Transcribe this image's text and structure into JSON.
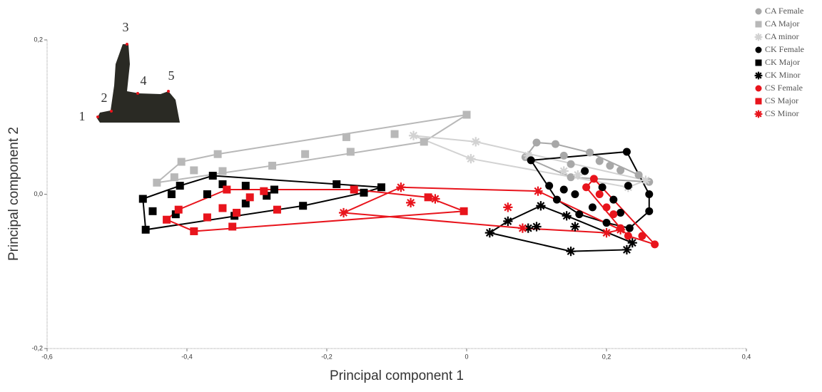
{
  "chart_data": {
    "type": "scatter",
    "xlabel": "Principal component 1",
    "ylabel": "Principal component 2",
    "xlim": [
      -0.6,
      0.4
    ],
    "ylim": [
      -0.2,
      0.2
    ],
    "xticks": [
      {
        "value": -0.6,
        "label": "-0,6"
      },
      {
        "value": -0.4,
        "label": "-0,4"
      },
      {
        "value": -0.2,
        "label": "-0,2"
      },
      0,
      {
        "value": 0.2,
        "label": "0,2"
      },
      {
        "value": 0.4,
        "label": "0,4"
      }
    ],
    "yticks": [
      {
        "value": -0.2,
        "label": "-0,2"
      },
      {
        "value": 0,
        "label": "0,0"
      },
      {
        "value": 0.2,
        "label": "0,2"
      }
    ],
    "legend": "upper right",
    "hulls": true,
    "series": [
      {
        "name": "CA Female",
        "color": "#a8a8a8",
        "marker": "circle",
        "x": [
          0.084,
          0.1,
          0.127,
          0.139,
          0.149,
          0.176,
          0.19,
          0.205,
          0.22,
          0.246,
          0.261,
          0.149,
          0.169
        ],
        "values": [
          0.048,
          0.067,
          0.065,
          0.05,
          0.039,
          0.054,
          0.043,
          0.037,
          0.031,
          0.025,
          0.016,
          0.022,
          0.03
        ]
      },
      {
        "name": "CA Major",
        "color": "#b8b8b8",
        "marker": "square",
        "x": [
          -0.443,
          -0.408,
          -0.418,
          -0.39,
          -0.356,
          -0.349,
          -0.278,
          -0.231,
          -0.172,
          -0.166,
          -0.103,
          -0.061,
          0.0
        ],
        "values": [
          0.015,
          0.042,
          0.022,
          0.031,
          0.052,
          0.03,
          0.037,
          0.052,
          0.074,
          0.055,
          0.078,
          0.068,
          0.103
        ]
      },
      {
        "name": "CA minor",
        "color": "#d2d2d2",
        "marker": "star",
        "x": [
          -0.076,
          0.013,
          0.006,
          0.088,
          0.139,
          0.159,
          0.231,
          0.256
        ],
        "values": [
          0.076,
          0.068,
          0.046,
          0.05,
          0.03,
          0.025,
          0.009,
          0.018
        ]
      },
      {
        "name": "CK Female",
        "color": "#000000",
        "marker": "circle",
        "x": [
          0.092,
          0.229,
          0.261,
          0.261,
          0.233,
          0.2,
          0.118,
          0.139,
          0.129,
          0.155,
          0.169,
          0.18,
          0.21,
          0.22,
          0.194,
          0.161,
          0.231
        ],
        "values": [
          0.044,
          0.055,
          0.0,
          -0.022,
          -0.044,
          -0.037,
          0.011,
          0.006,
          -0.007,
          0.0,
          0.03,
          -0.017,
          -0.007,
          -0.024,
          0.009,
          -0.026,
          0.011
        ]
      },
      {
        "name": "CK Major",
        "color": "#000000",
        "marker": "square",
        "x": [
          -0.463,
          -0.459,
          -0.363,
          -0.122,
          -0.234,
          -0.422,
          -0.41,
          -0.371,
          -0.349,
          -0.316,
          -0.286,
          -0.275,
          -0.186,
          -0.147,
          -0.449,
          -0.416,
          -0.332,
          -0.316
        ],
        "values": [
          -0.006,
          -0.046,
          0.024,
          0.009,
          -0.015,
          0.0,
          0.011,
          0.0,
          0.013,
          0.011,
          -0.002,
          0.006,
          0.013,
          0.002,
          -0.022,
          -0.026,
          -0.028,
          -0.012
        ]
      },
      {
        "name": "CK Minor",
        "color": "#000000",
        "marker": "star",
        "x": [
          0.033,
          0.059,
          0.1,
          0.106,
          0.149,
          0.229,
          0.237,
          0.155,
          0.143,
          0.088
        ],
        "values": [
          -0.05,
          -0.035,
          -0.042,
          -0.015,
          -0.074,
          -0.072,
          -0.063,
          -0.042,
          -0.028,
          -0.044
        ]
      },
      {
        "name": "CS Female",
        "color": "#e8141c",
        "marker": "circle",
        "x": [
          0.182,
          0.269,
          0.22,
          0.2,
          0.19,
          0.21,
          0.251,
          0.171,
          0.231
        ],
        "values": [
          0.02,
          -0.065,
          -0.044,
          -0.017,
          0.0,
          -0.026,
          -0.054,
          0.009,
          -0.054
        ]
      },
      {
        "name": "CS Major",
        "color": "#e8141c",
        "marker": "square",
        "x": [
          -0.429,
          -0.39,
          -0.343,
          -0.335,
          -0.004,
          -0.412,
          -0.371,
          -0.349,
          -0.329,
          -0.31,
          -0.29,
          -0.271,
          -0.161,
          -0.055
        ],
        "values": [
          -0.033,
          -0.048,
          0.006,
          -0.042,
          -0.022,
          -0.02,
          -0.03,
          -0.018,
          -0.024,
          -0.004,
          0.004,
          -0.02,
          0.006,
          -0.004
        ]
      },
      {
        "name": "CS Minor",
        "color": "#e8141c",
        "marker": "star",
        "x": [
          -0.176,
          -0.094,
          0.102,
          -0.08,
          -0.045,
          0.059,
          0.08,
          0.2,
          0.22
        ],
        "values": [
          -0.024,
          0.009,
          0.004,
          -0.011,
          -0.006,
          -0.017,
          -0.044,
          -0.05,
          -0.046
        ]
      }
    ]
  },
  "inset": {
    "labels": [
      "1",
      "2",
      "3",
      "4",
      "5"
    ]
  }
}
